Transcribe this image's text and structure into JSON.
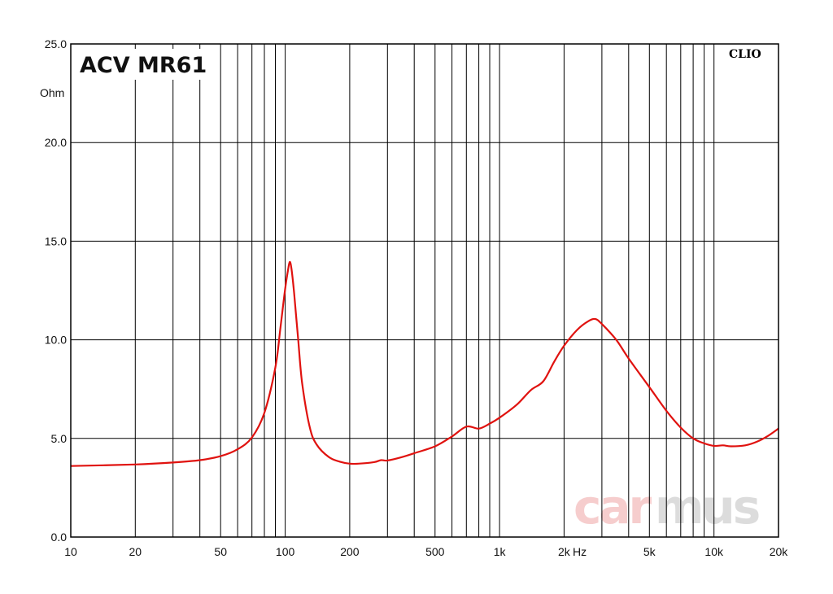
{
  "chart_data": {
    "type": "line",
    "title": "ACV MR61",
    "brand": "CLIO",
    "watermark": "carmus",
    "ylabel": "Ohm",
    "xlabel": "Hz",
    "x_scale": "log",
    "xlim": [
      10,
      20000
    ],
    "ylim": [
      0,
      25
    ],
    "grid": true,
    "y_ticks": [
      "0.0",
      "5.0",
      "10.0",
      "15.0",
      "20.0",
      "25.0"
    ],
    "x_ticks": [
      {
        "value": 10,
        "label": "10"
      },
      {
        "value": 20,
        "label": "20"
      },
      {
        "value": 50,
        "label": "50"
      },
      {
        "value": 100,
        "label": "100"
      },
      {
        "value": 200,
        "label": "200"
      },
      {
        "value": 500,
        "label": "500"
      },
      {
        "value": 1000,
        "label": "1k"
      },
      {
        "value": 2000,
        "label": "2k"
      },
      {
        "value": 5000,
        "label": "5k"
      },
      {
        "value": 10000,
        "label": "10k"
      },
      {
        "value": 20000,
        "label": "20k"
      }
    ],
    "series": [
      {
        "color": "#e0120f",
        "x": [
          10,
          20,
          30,
          40,
          50,
          60,
          70,
          80,
          90,
          95,
          100,
          103,
          105,
          107,
          110,
          115,
          120,
          130,
          140,
          160,
          180,
          200,
          220,
          260,
          280,
          300,
          350,
          400,
          500,
          600,
          700,
          800,
          900,
          1000,
          1200,
          1400,
          1600,
          1800,
          2000,
          2300,
          2600,
          2800,
          3000,
          3500,
          4000,
          5000,
          6000,
          7000,
          8000,
          9000,
          10000,
          11000,
          12000,
          14000,
          16000,
          18000,
          20000
        ],
        "y": [
          3.6,
          3.68,
          3.78,
          3.9,
          4.1,
          4.45,
          5.05,
          6.3,
          8.6,
          10.6,
          12.6,
          13.5,
          13.95,
          13.6,
          12.4,
          10.0,
          7.8,
          5.6,
          4.7,
          4.05,
          3.82,
          3.72,
          3.72,
          3.8,
          3.9,
          3.88,
          4.05,
          4.25,
          4.6,
          5.1,
          5.6,
          5.5,
          5.75,
          6.05,
          6.7,
          7.45,
          7.9,
          8.9,
          9.7,
          10.5,
          10.95,
          11.05,
          10.8,
          10.0,
          9.05,
          7.6,
          6.4,
          5.55,
          5.0,
          4.75,
          4.62,
          4.65,
          4.6,
          4.65,
          4.85,
          5.15,
          5.5
        ]
      }
    ]
  }
}
